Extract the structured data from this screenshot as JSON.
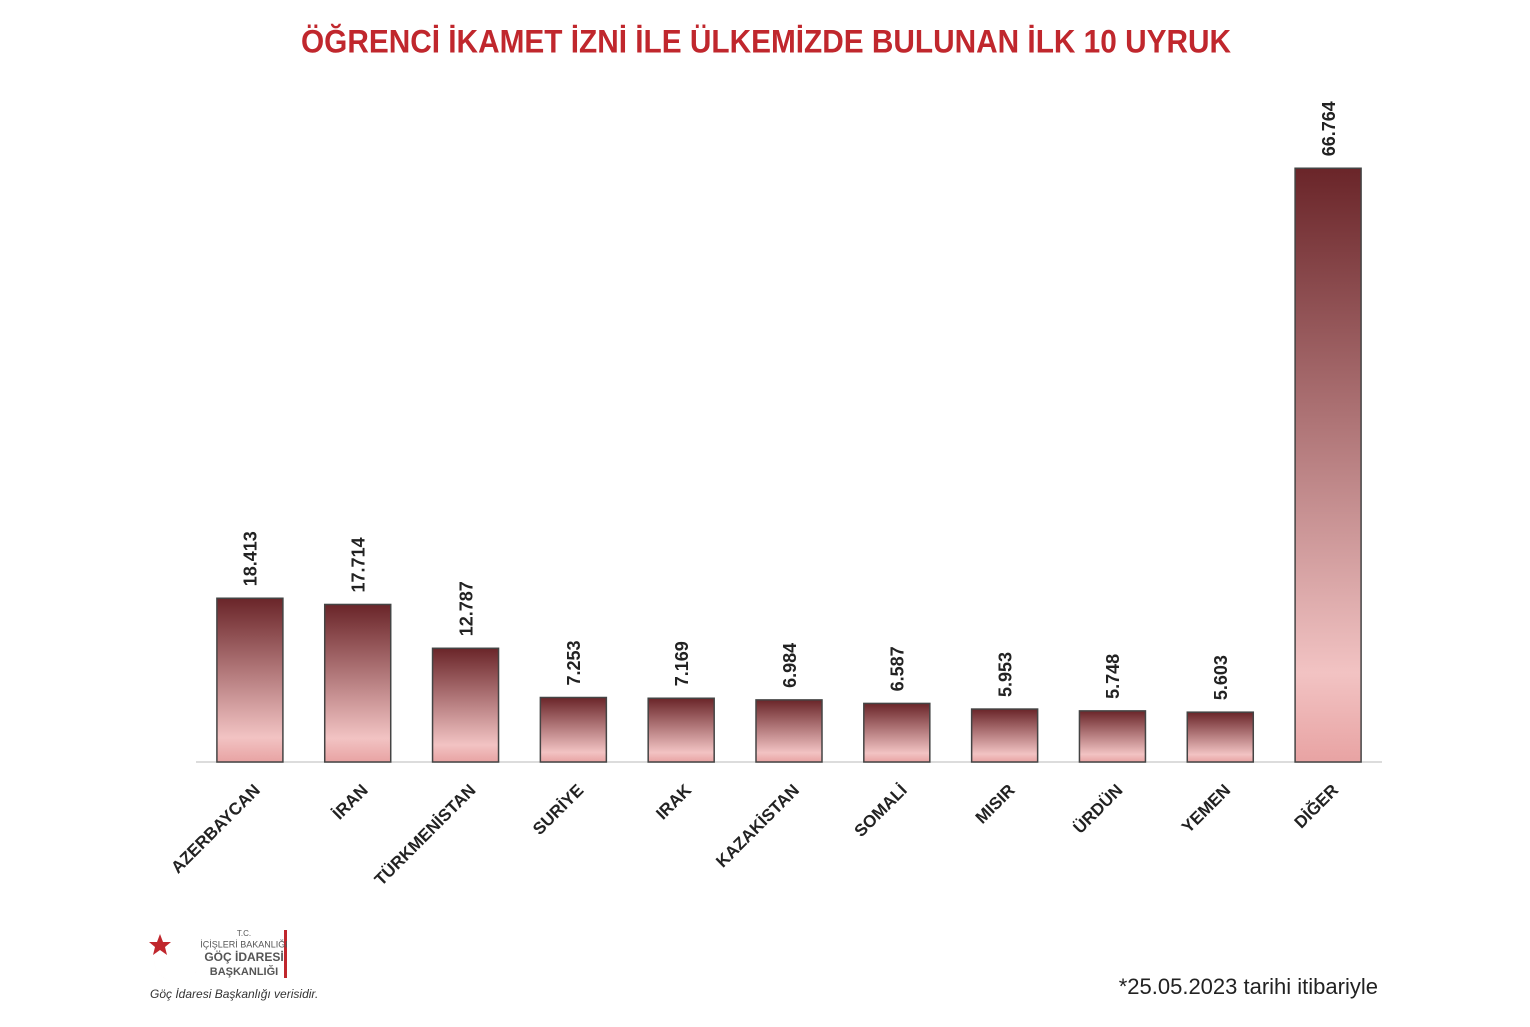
{
  "chart_data": {
    "type": "bar",
    "title": "ÖĞRENCİ İKAMET İZNİ İLE ÜLKEMİZDE BULUNAN İLK 10 UYRUK",
    "categories": [
      "AZERBAYCAN",
      "İRAN",
      "TÜRKMENİSTAN",
      "SURİYE",
      "IRAK",
      "KAZAKİSTAN",
      "SOMALİ",
      "MISIR",
      "ÜRDÜN",
      "YEMEN",
      "DİĞER"
    ],
    "values": [
      18413,
      17714,
      12787,
      7253,
      7169,
      6984,
      6587,
      5953,
      5748,
      5603,
      66764
    ],
    "value_labels": [
      "18.413",
      "17.714",
      "12.787",
      "7.253",
      "7.169",
      "6.984",
      "6.587",
      "5.953",
      "5.748",
      "5.603",
      "66.764"
    ],
    "color": "#7a2f33",
    "ylim": [
      0,
      75000
    ],
    "footnote": "*25.05.2023 tarihi itibariyle"
  },
  "logo": {
    "line1": "T.C.",
    "line2": "İÇİŞLERİ BAKANLIĞI",
    "line3": "GÖÇ İDARESİ",
    "line4": "BAŞKANLIĞI",
    "source": "Göç İdaresi Başkanlığı verisidir."
  }
}
